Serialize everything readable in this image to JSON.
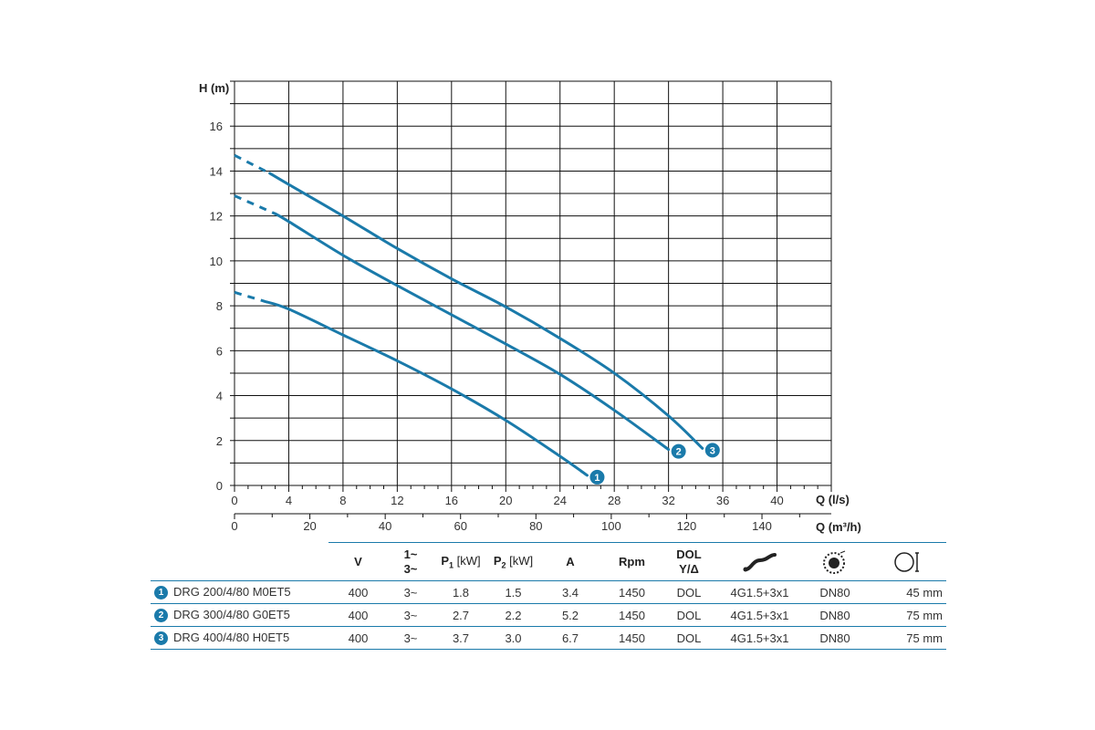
{
  "chart_data": {
    "type": "line",
    "ylabel": "H (m)",
    "xlabel": "Q (l/s)",
    "xlabel2": "Q (m³/h)",
    "xlim": [
      0,
      44
    ],
    "ylim": [
      0,
      18
    ],
    "x_ticks": [
      "0",
      "4",
      "8",
      "12",
      "16",
      "20",
      "24",
      "28",
      "32",
      "36",
      "40"
    ],
    "y_ticks": [
      "0",
      "2",
      "4",
      "6",
      "8",
      "10",
      "12",
      "14",
      "16"
    ],
    "x2_ticks": [
      "0",
      "20",
      "40",
      "60",
      "80",
      "100",
      "120",
      "140"
    ],
    "grid": true,
    "series": [
      {
        "marker": "1",
        "dashed": [
          [
            0,
            8.6
          ],
          [
            2.2,
            8.2
          ]
        ],
        "points": [
          [
            2.2,
            8.2
          ],
          [
            4,
            7.85
          ],
          [
            8,
            6.7
          ],
          [
            12,
            5.55
          ],
          [
            16,
            4.3
          ],
          [
            20,
            2.9
          ],
          [
            24,
            1.3
          ],
          [
            26,
            0.45
          ]
        ]
      },
      {
        "marker": "2",
        "dashed": [
          [
            0,
            12.9
          ],
          [
            3,
            12.1
          ]
        ],
        "points": [
          [
            3,
            12.1
          ],
          [
            4,
            11.75
          ],
          [
            8,
            10.25
          ],
          [
            12,
            8.9
          ],
          [
            16,
            7.6
          ],
          [
            20,
            6.3
          ],
          [
            24,
            4.95
          ],
          [
            28,
            3.35
          ],
          [
            32,
            1.6
          ]
        ]
      },
      {
        "marker": "3",
        "dashed": [
          [
            0,
            14.7
          ],
          [
            2.6,
            13.9
          ]
        ],
        "points": [
          [
            2.6,
            13.9
          ],
          [
            4,
            13.4
          ],
          [
            8,
            12.0
          ],
          [
            12,
            10.55
          ],
          [
            16,
            9.2
          ],
          [
            20,
            7.95
          ],
          [
            24,
            6.55
          ],
          [
            28,
            5.0
          ],
          [
            32,
            3.1
          ],
          [
            34.5,
            1.65
          ]
        ]
      }
    ]
  },
  "table": {
    "headers": {
      "v": "V",
      "phase_top": "1~",
      "phase_bottom": "3~",
      "p1": "P",
      "p1_sub": "1",
      "p1_unit": "[kW]",
      "p2": "P",
      "p2_sub": "2",
      "p2_unit": "[kW]",
      "a": "A",
      "rpm": "Rpm",
      "start_top": "DOL",
      "start_bottom": "Y/Δ",
      "cable_icon": "cable-icon",
      "flange_icon": "flange-icon",
      "passage_icon": "free-passage-icon"
    },
    "rows": [
      {
        "num": "1",
        "model": "DRG 200/4/80 M0ET5",
        "v": "400",
        "phase": "3~",
        "p1": "1.8",
        "p2": "1.5",
        "a": "3.4",
        "rpm": "1450",
        "start": "DOL",
        "cable": "4G1.5+3x1",
        "flange": "DN80",
        "passage": "45 mm"
      },
      {
        "num": "2",
        "model": "DRG 300/4/80 G0ET5",
        "v": "400",
        "phase": "3~",
        "p1": "2.7",
        "p2": "2.2",
        "a": "5.2",
        "rpm": "1450",
        "start": "DOL",
        "cable": "4G1.5+3x1",
        "flange": "DN80",
        "passage": "75 mm"
      },
      {
        "num": "3",
        "model": "DRG 400/4/80 H0ET5",
        "v": "400",
        "phase": "3~",
        "p1": "3.7",
        "p2": "3.0",
        "a": "6.7",
        "rpm": "1450",
        "start": "DOL",
        "cable": "4G1.5+3x1",
        "flange": "DN80",
        "passage": "75 mm"
      }
    ]
  },
  "colors": {
    "curve": "#1a7aaa",
    "grid": "#111111"
  }
}
